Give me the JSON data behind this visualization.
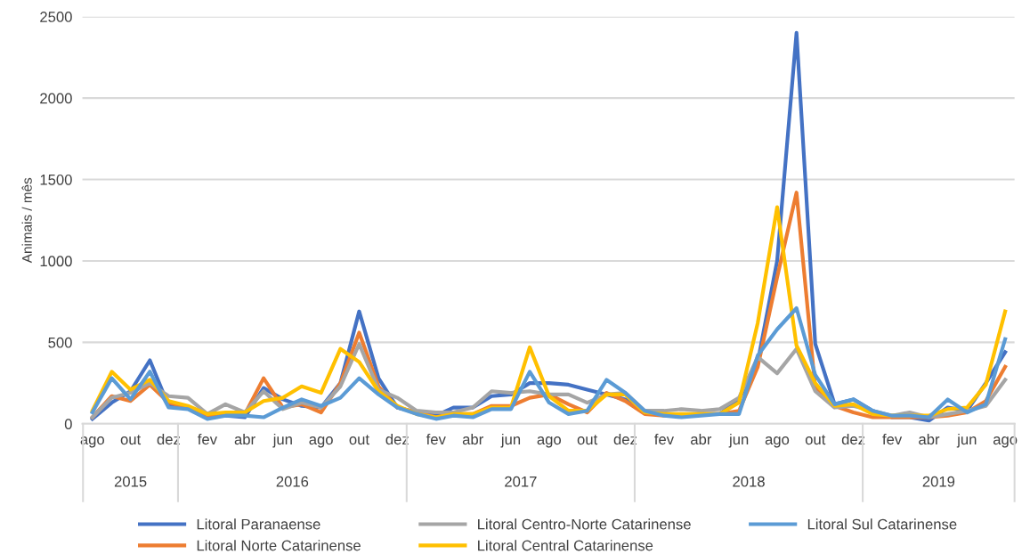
{
  "chart_data": {
    "type": "line",
    "ylabel": "Animais / mês",
    "x": [
      "2015-08",
      "2015-09",
      "2015-10",
      "2015-11",
      "2015-12",
      "2016-01",
      "2016-02",
      "2016-03",
      "2016-04",
      "2016-05",
      "2016-06",
      "2016-07",
      "2016-08",
      "2016-09",
      "2016-10",
      "2016-11",
      "2016-12",
      "2017-01",
      "2017-02",
      "2017-03",
      "2017-04",
      "2017-05",
      "2017-06",
      "2017-07",
      "2017-08",
      "2017-09",
      "2017-10",
      "2017-11",
      "2017-12",
      "2018-01",
      "2018-02",
      "2018-03",
      "2018-04",
      "2018-05",
      "2018-06",
      "2018-07",
      "2018-08",
      "2018-09",
      "2018-10",
      "2018-11",
      "2018-12",
      "2019-01",
      "2019-02",
      "2019-03",
      "2019-04",
      "2019-05",
      "2019-06",
      "2019-07",
      "2019-08"
    ],
    "series": [
      {
        "name": "Litoral Paranaense",
        "color": "#4472c4",
        "values": [
          30,
          130,
          200,
          390,
          110,
          100,
          50,
          50,
          40,
          220,
          150,
          110,
          100,
          250,
          690,
          280,
          100,
          70,
          50,
          100,
          100,
          170,
          180,
          250,
          250,
          240,
          210,
          180,
          150,
          80,
          60,
          50,
          60,
          60,
          150,
          380,
          1000,
          2400,
          490,
          120,
          150,
          80,
          40,
          40,
          20,
          100,
          80,
          250,
          440
        ]
      },
      {
        "name": "Litoral Norte Catarinense",
        "color": "#ed7d31",
        "values": [
          40,
          170,
          140,
          240,
          130,
          100,
          50,
          60,
          60,
          280,
          100,
          120,
          70,
          250,
          560,
          230,
          100,
          70,
          40,
          60,
          60,
          110,
          110,
          160,
          180,
          120,
          70,
          190,
          140,
          60,
          50,
          50,
          60,
          60,
          80,
          350,
          900,
          1420,
          220,
          110,
          70,
          40,
          40,
          40,
          40,
          50,
          70,
          140,
          350
        ]
      },
      {
        "name": "Litoral Centro-Norte Catarinense",
        "color": "#a5a5a5",
        "values": [
          40,
          160,
          190,
          250,
          170,
          160,
          60,
          120,
          70,
          200,
          90,
          130,
          100,
          230,
          490,
          210,
          160,
          80,
          70,
          70,
          100,
          200,
          190,
          200,
          180,
          180,
          130,
          180,
          190,
          80,
          80,
          90,
          80,
          90,
          160,
          410,
          310,
          460,
          200,
          100,
          110,
          80,
          50,
          70,
          40,
          60,
          80,
          110,
          270
        ]
      },
      {
        "name": "Litoral Central Catarinense",
        "color": "#ffc000",
        "values": [
          80,
          320,
          210,
          270,
          140,
          110,
          60,
          70,
          70,
          140,
          160,
          230,
          190,
          460,
          380,
          200,
          110,
          60,
          40,
          60,
          60,
          100,
          100,
          470,
          170,
          80,
          80,
          180,
          180,
          70,
          60,
          60,
          60,
          60,
          130,
          620,
          1330,
          480,
          250,
          110,
          120,
          60,
          50,
          50,
          50,
          90,
          100,
          240,
          690
        ]
      },
      {
        "name": "Litoral Sul Catarinense",
        "color": "#5b9bd5",
        "values": [
          70,
          280,
          150,
          320,
          100,
          90,
          30,
          50,
          50,
          40,
          100,
          150,
          110,
          160,
          280,
          180,
          100,
          60,
          30,
          50,
          40,
          90,
          90,
          320,
          130,
          60,
          80,
          270,
          190,
          80,
          50,
          40,
          50,
          60,
          60,
          420,
          580,
          710,
          300,
          120,
          150,
          80,
          50,
          50,
          40,
          150,
          70,
          120,
          520
        ]
      }
    ],
    "xlim": [
      "2015-07-16",
      "2019-08-16"
    ],
    "xticks": [
      {
        "value": "2015-08",
        "label": "ago"
      },
      {
        "value": "2015-10",
        "label": "out"
      },
      {
        "value": "2015-12",
        "label": "dez"
      },
      {
        "value": "2016-02",
        "label": "fev"
      },
      {
        "value": "2016-04",
        "label": "abr"
      },
      {
        "value": "2016-06",
        "label": "jun"
      },
      {
        "value": "2016-08",
        "label": "ago"
      },
      {
        "value": "2016-10",
        "label": "out"
      },
      {
        "value": "2016-12",
        "label": "dez"
      },
      {
        "value": "2017-02",
        "label": "fev"
      },
      {
        "value": "2017-04",
        "label": "abr"
      },
      {
        "value": "2017-06",
        "label": "jun"
      },
      {
        "value": "2017-08",
        "label": "ago"
      },
      {
        "value": "2017-10",
        "label": "out"
      },
      {
        "value": "2017-12",
        "label": "dez"
      },
      {
        "value": "2018-02",
        "label": "fev"
      },
      {
        "value": "2018-04",
        "label": "abr"
      },
      {
        "value": "2018-06",
        "label": "jun"
      },
      {
        "value": "2018-08",
        "label": "ago"
      },
      {
        "value": "2018-10",
        "label": "out"
      },
      {
        "value": "2018-12",
        "label": "dez"
      },
      {
        "value": "2019-02",
        "label": "fev"
      },
      {
        "value": "2019-04",
        "label": "abr"
      },
      {
        "value": "2019-06",
        "label": "jun"
      },
      {
        "value": "2019-08",
        "label": "ago"
      }
    ],
    "ylim": [
      0,
      2500
    ],
    "yticks": [
      0,
      500,
      1000,
      1500,
      2000,
      2500
    ],
    "annotations": [
      "2015",
      "2016",
      "2017",
      "2018",
      "2019"
    ],
    "grid": "y",
    "legend": "bottom",
    "marker": "none",
    "line_style": "solid"
  }
}
